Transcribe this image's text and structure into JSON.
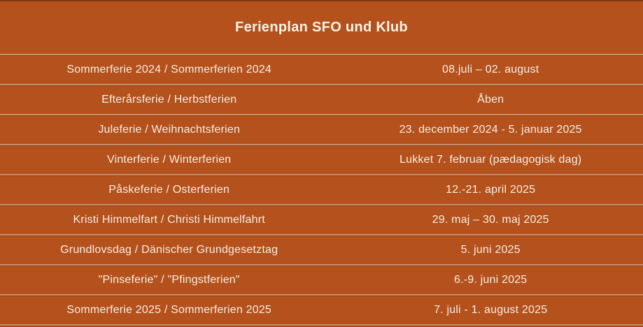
{
  "title": "Ferienplan SFO und Klub",
  "colors": {
    "background": "#B4511C",
    "top_border": "#7C3911",
    "divider": "#C79173",
    "divider_dark": "#8E3F10",
    "text": "#F6EEE2",
    "title_text": "#FAF4E8"
  },
  "table": {
    "rows": [
      {
        "label": "Sommerferie 2024 / Sommerferien 2024",
        "value": "08.juli – 02. august"
      },
      {
        "label": "Efterårsferie / Herbstferien",
        "value": "Åben"
      },
      {
        "label": "Juleferie / Weihnachtsferien",
        "value": "23. december 2024 - 5. januar 2025"
      },
      {
        "label": "Vinterferie / Winterferien",
        "value": "Lukket 7. februar (pædagogisk dag)"
      },
      {
        "label": "Påskeferie / Osterferien",
        "value": "12.-21. april 2025"
      },
      {
        "label": "Kristi Himmelfart / Christi Himmelfahrt",
        "value": "29. maj – 30. maj 2025"
      },
      {
        "label": "Grundlovsdag / Dänischer Grundgesetztag",
        "value": "5. juni 2025"
      },
      {
        "label": "\"Pinseferie\" / \"Pfingstferien\"",
        "value": "6.-9. juni 2025"
      },
      {
        "label": "Sommerferie 2025 / Sommerferien 2025",
        "value": "7. juli - 1. august 2025"
      }
    ]
  }
}
